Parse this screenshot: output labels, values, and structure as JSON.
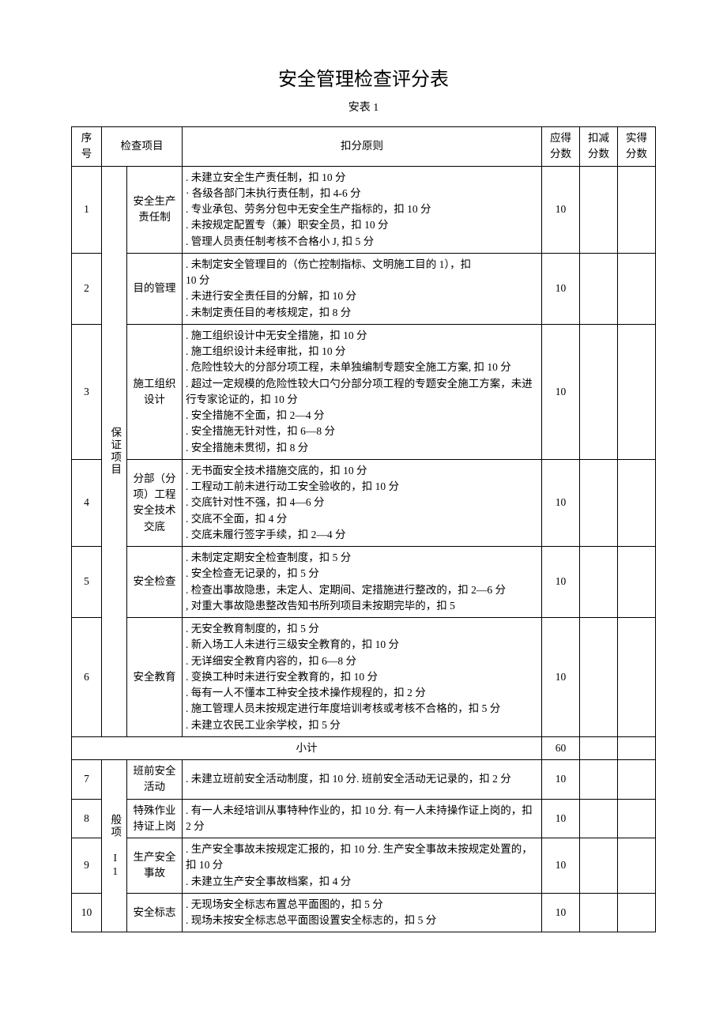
{
  "title": "安全管理检查评分表",
  "subtitle": "安表 1",
  "headers": {
    "seq": "序号",
    "item": "检查项目",
    "rule": "扣分原则",
    "score_due": "应得分数",
    "score_deduct": "扣减分数",
    "score_actual": "实得分数"
  },
  "category1": "保证项目",
  "category2": "般项 I1",
  "rows": [
    {
      "seq": "1",
      "item": "安全生产责任制",
      "rule": ". 未建立安全生产责任制，扣 10 分\n · 各级各部门未执行责任制，扣 4-6 分\n. 专业承包、劳务分包中无安全生产指标的，扣 10 分\n. 未按规定配置专（兼）职安全员，扣 10 分\n. 管理人员责任制考核不合格小 J, 扣 5 分",
      "score": "10"
    },
    {
      "seq": "2",
      "item": "目的管理",
      "rule": ". 未制定安全管理目的（伤亡控制指标、文明施工目的 1），扣\n10 分\n. 未进行安全责任目的分解，扣 10 分\n. 未制定责任目的考核规定，扣 8 分",
      "score": "10"
    },
    {
      "seq": "3",
      "item": "施工组织设计",
      "rule": ". 施工组织设计中无安全措施，扣 10 分\n. 施工组织设计未经审批，扣 10 分\n. 危险性较大的分部分项工程，未单独编制专题安全施工方案, 扣 10 分\n . 超过一定规模的危险性较大口勺分部分项工程的专题安全施工方案，未进行专家论证的，扣 10 分\n. 安全措施不全面，扣 2—4 分\n. 安全措施无针对性，扣 6—8 分\n. 安全措施未贯彻，扣 8 分",
      "score": "10"
    },
    {
      "seq": "4",
      "item": "分部（分项）工程安全技术交底",
      "rule": ". 无书面安全技术措施交底的，扣 10 分\n. 工程动工前未进行动工安全验收的，扣 10 分\n. 交底针对性不强，扣 4—6 分\n. 交底不全面，扣 4 分\n. 交底未履行签字手续，扣 2—4 分",
      "score": "10"
    },
    {
      "seq": "5",
      "item": "安全检查",
      "rule": ". 未制定定期安全检查制度，扣 5 分\n. 安全检查无记录的，扣 5 分\n . 检查出事故隐患，未定人、定期间、定措施进行整改的，扣 2—6 分\n, 对重大事故隐患整改告知书所列项目未按期完毕的，扣 5",
      "score": "10"
    },
    {
      "seq": "6",
      "item": "安全教育",
      "rule": ". 无安全教育制度的，扣 5 分\n. 新入场工人未进行三级安全教育的，扣 10 分\n. 无详细安全教育内容的，扣 6—8 分\n. 变换工种时未进行安全教育的，扣 10 分\n. 每有一人不懂本工种安全技术操作规程的，扣 2 分\n . 施工管理人员未按规定进行年度培训考核或考核不合格的，扣 5 分\n. 未建立农民工业余学校，扣 5 分",
      "score": "10"
    }
  ],
  "subtotal": {
    "label": "小计",
    "score": "60"
  },
  "rows2": [
    {
      "seq": "7",
      "item": "班前安全活动",
      "rule": " . 未建立班前安全活动制度，扣 10 分. 班前安全活动无记录的，扣 2 分",
      "score": "10"
    },
    {
      "seq": "8",
      "item": "特殊作业持证上岗",
      "rule": " . 有一人未经培训从事特种作业的，扣 10 分. 有一人未持操作证上岗的，扣 2 分",
      "score": "10"
    },
    {
      "seq": "9",
      "item": "生产安全事故",
      "rule": " . 生产安全事故未按规定汇报的，扣 10 分. 生产安全事故未按规定处置的，扣 10 分\n. 未建立生产安全事故档案，扣 4 分",
      "score": "10"
    },
    {
      "seq": "10",
      "item": "安全标志",
      "rule": ". 无现场安全标志布置总平面图的，扣 5 分\n. 现场未按安全标志总平面图设置安全标志的，扣 5 分",
      "score": "10"
    }
  ]
}
